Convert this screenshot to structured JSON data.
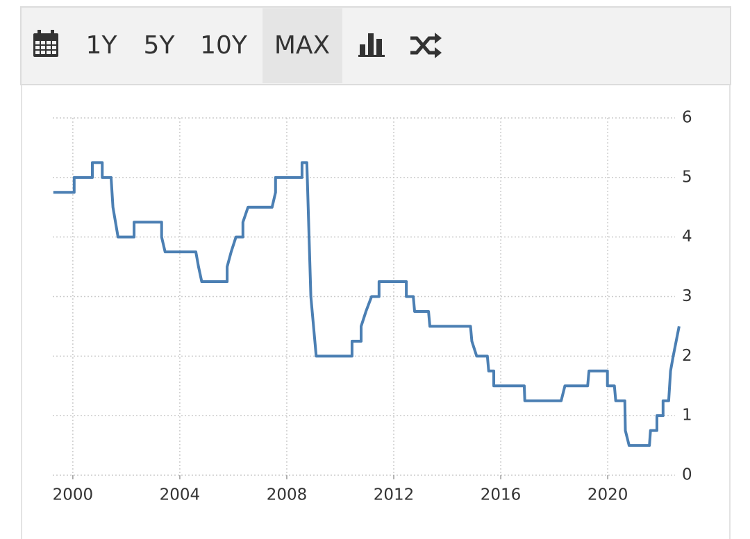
{
  "toolbar": {
    "buttons": [
      "1Y",
      "5Y",
      "10Y",
      "MAX"
    ]
  },
  "chart_data": {
    "type": "line",
    "x": [
      1999.27,
      2000.05,
      2000.05,
      2000.73,
      2000.73,
      2001.1,
      2001.1,
      2001.43,
      2001.5,
      2001.69,
      2002.29,
      2002.29,
      2003.32,
      2003.32,
      2003.45,
      2004.6,
      2004.7,
      2004.82,
      2005.77,
      2005.77,
      2005.92,
      2006.1,
      2006.36,
      2006.36,
      2006.55,
      2007.45,
      2007.58,
      2007.58,
      2008.57,
      2008.57,
      2008.75,
      2008.9,
      2009.1,
      2010.44,
      2010.44,
      2010.78,
      2010.78,
      2010.96,
      2011.17,
      2011.45,
      2011.45,
      2012.47,
      2012.47,
      2012.73,
      2012.78,
      2013.3,
      2013.35,
      2014.87,
      2014.92,
      2015.1,
      2015.5,
      2015.55,
      2015.74,
      2015.74,
      2016.88,
      2016.9,
      2018.26,
      2018.4,
      2019.25,
      2019.3,
      2019.99,
      2019.99,
      2020.25,
      2020.3,
      2020.64,
      2020.66,
      2020.8,
      2021.56,
      2021.6,
      2021.84,
      2021.84,
      2022.07,
      2022.07,
      2022.28,
      2022.35,
      2022.45,
      2022.67
    ],
    "series": [
      {
        "color": "#4b7fb3",
        "values": [
          4.75,
          4.75,
          5.0,
          5.0,
          5.25,
          5.25,
          5.0,
          5.0,
          4.5,
          4.0,
          4.0,
          4.25,
          4.25,
          4.0,
          3.75,
          3.75,
          3.5,
          3.25,
          3.25,
          3.5,
          3.75,
          4.0,
          4.0,
          4.25,
          4.5,
          4.5,
          4.75,
          5.0,
          5.0,
          5.25,
          5.25,
          3.0,
          2.0,
          2.0,
          2.25,
          2.25,
          2.5,
          2.75,
          3.0,
          3.0,
          3.25,
          3.25,
          3.0,
          3.0,
          2.75,
          2.75,
          2.5,
          2.5,
          2.25,
          2.0,
          2.0,
          1.75,
          1.75,
          1.5,
          1.5,
          1.25,
          1.25,
          1.5,
          1.5,
          1.75,
          1.75,
          1.5,
          1.5,
          1.25,
          1.25,
          0.75,
          0.5,
          0.5,
          0.75,
          0.75,
          1.0,
          1.0,
          1.25,
          1.25,
          1.75,
          2.0,
          2.5
        ]
      }
    ],
    "xlim": [
      1999.25,
      2022.75
    ],
    "xticks": [
      2000,
      2004,
      2008,
      2012,
      2016,
      2020
    ],
    "ylim": [
      0,
      6
    ],
    "yticks": [
      0,
      1,
      2,
      3,
      4,
      5,
      6
    ],
    "grid": true
  }
}
